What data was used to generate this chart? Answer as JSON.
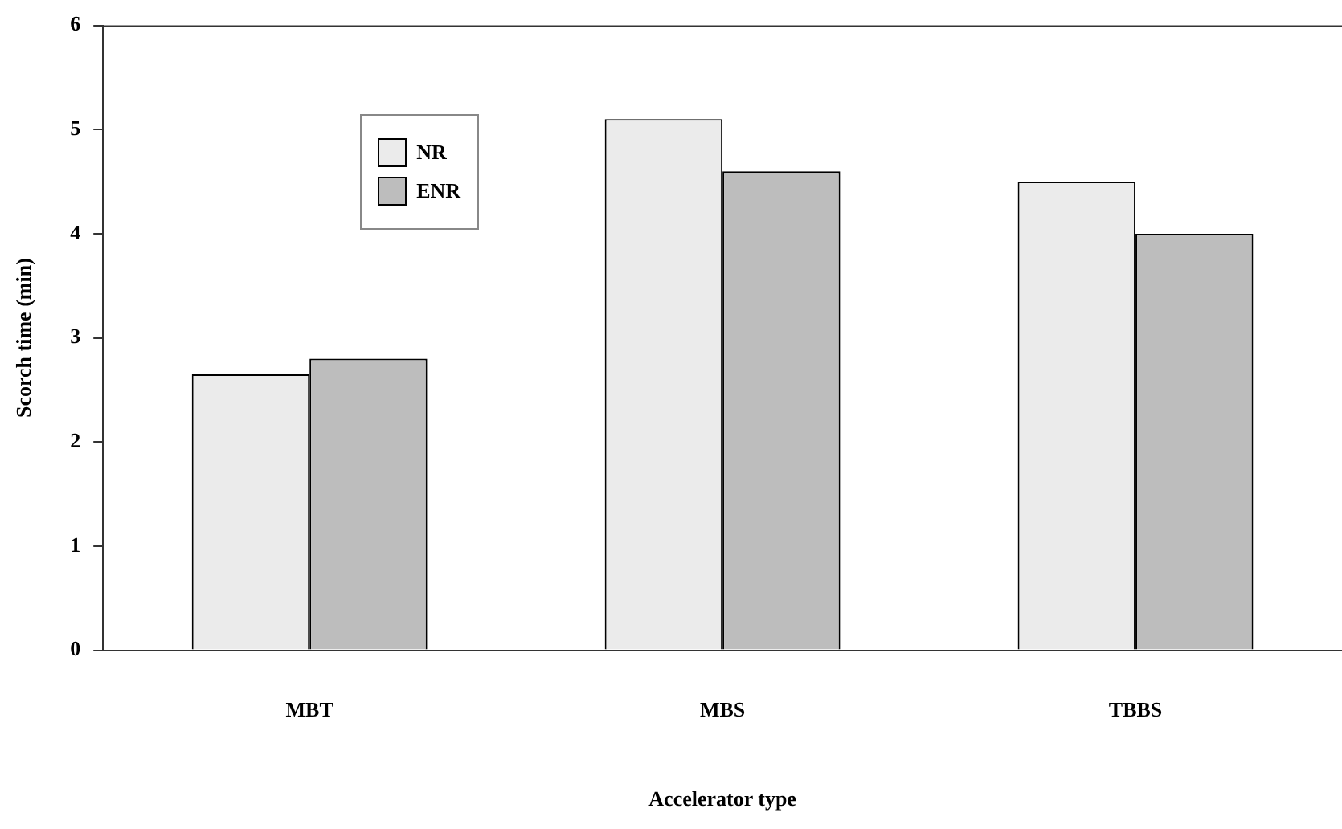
{
  "chart_data": {
    "type": "bar",
    "xlabel": "Accelerator type",
    "ylabel": "Scorch time (min)",
    "categories": [
      "MBT",
      "MBS",
      "TBBS"
    ],
    "series": [
      {
        "name": "NR",
        "color": "#ebebeb",
        "values": [
          2.65,
          5.1,
          4.5
        ]
      },
      {
        "name": "ENR",
        "color": "#bdbdbd",
        "values": [
          2.8,
          4.6,
          4.0
        ]
      }
    ],
    "ylim": [
      0,
      6
    ],
    "yticks": [
      0,
      1,
      2,
      3,
      4,
      5,
      6
    ],
    "grid": false,
    "legend": "top left"
  }
}
